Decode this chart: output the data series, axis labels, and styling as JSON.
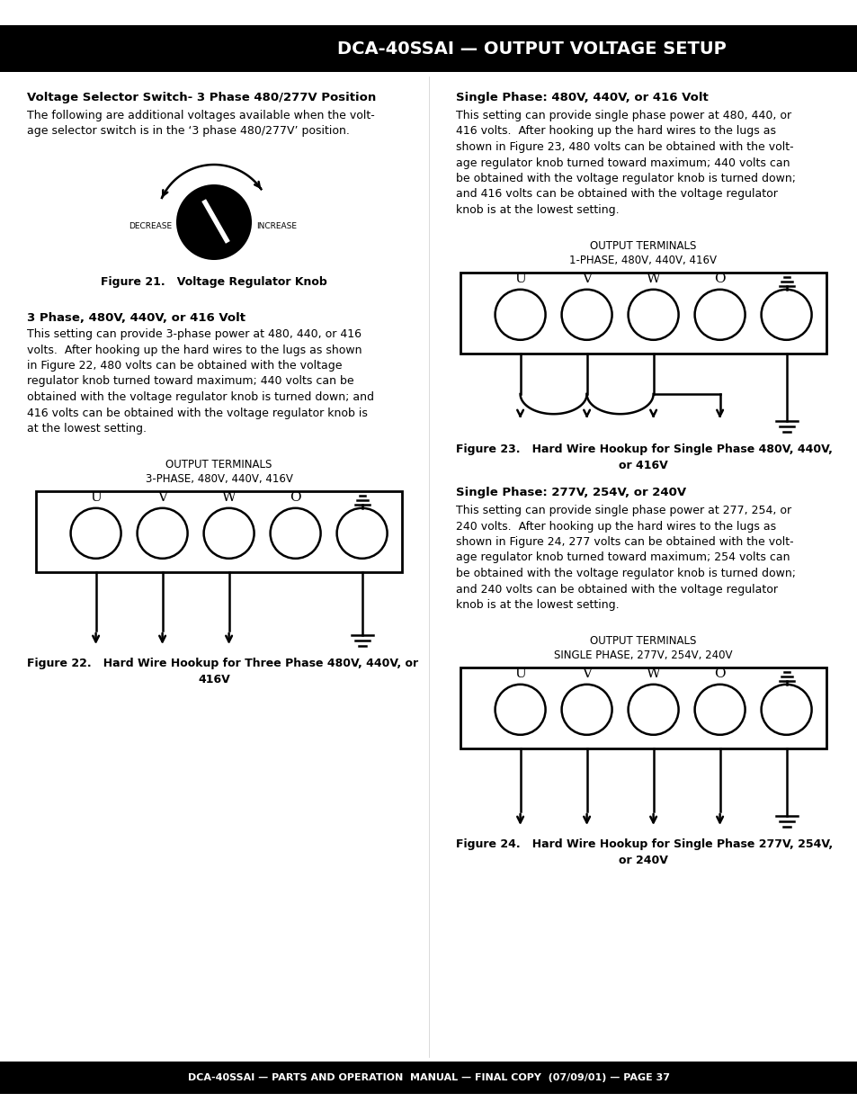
{
  "title_text": "DCA-40SSAI — OUTPUT VOLTAGE SETUP",
  "footer_text": "DCA-40SSAI — PARTS AND OPERATION  MANUAL — FINAL COPY  (07/09/01) — PAGE 37",
  "header_bg": "#000000",
  "header_fg": "#ffffff",
  "body_bg": "#ffffff",
  "body_fg": "#000000",
  "sec0_heading": "Voltage Selector Switch- 3 Phase 480/277V Position",
  "sec0_body": "The following are additional voltages available when the volt-\nage selector switch is in the ‘3 phase 480/277V’ position.",
  "sec1_heading": "3 Phase, 480V, 440V, or 416 Volt",
  "sec1_body": "This setting can provide 3-phase power at 480, 440, or 416\nvolts.  After hooking up the hard wires to the lugs as shown\nin Figure 22, 480 volts can be obtained with the voltage\nregulator knob turned toward maximum; 440 volts can be\nobtained with the voltage regulator knob is turned down; and\n416 volts can be obtained with the voltage regulator knob is\nat the lowest setting.",
  "sec2_heading": "Single Phase: 480V, 440V, or 416 Volt",
  "sec2_body": "This setting can provide single phase power at 480, 440, or\n416 volts.  After hooking up the hard wires to the lugs as\nshown in Figure 23, 480 volts can be obtained with the volt-\nage regulator knob turned toward maximum; 440 volts can\nbe obtained with the voltage regulator knob is turned down;\nand 416 volts can be obtained with the voltage regulator\nknob is at the lowest setting.",
  "sec3_heading": "Single Phase: 277V, 254V, or 240V",
  "sec3_body": "This setting can provide single phase power at 277, 254, or\n240 volts.  After hooking up the hard wires to the lugs as\nshown in Figure 24, 277 volts can be obtained with the volt-\nage regulator knob turned toward maximum; 254 volts can\nbe obtained with the voltage regulator knob is turned down;\nand 240 volts can be obtained with the voltage regulator\nknob is at the lowest setting.",
  "fig21_cap": "Figure 21.   Voltage Regulator Knob",
  "fig22_cap_line1": "Figure 22.   Hard Wire Hookup for Three Phase 480V, 440V, or",
  "fig22_cap_line2": "416V",
  "fig23_cap_line1": "Figure 23.   Hard Wire Hookup for Single Phase 480V, 440V,",
  "fig23_cap_line2": "or 416V",
  "fig24_cap_line1": "Figure 24.   Hard Wire Hookup for Single Phase 277V, 254V,",
  "fig24_cap_line2": "or 240V",
  "lbl_3phase_line1": "OUTPUT TERMINALS",
  "lbl_3phase_line2": "3-PHASE, 480V, 440V, 416V",
  "lbl_1phase_hi_line1": "OUTPUT TERMINALS",
  "lbl_1phase_hi_line2": "1-PHASE, 480V, 440V, 416V",
  "lbl_1phase_lo_line1": "OUTPUT TERMINALS",
  "lbl_1phase_lo_line2": "SINGLE PHASE, 277V, 254V, 240V",
  "decrease_label": "DECREASE",
  "increase_label": "INCREASE"
}
